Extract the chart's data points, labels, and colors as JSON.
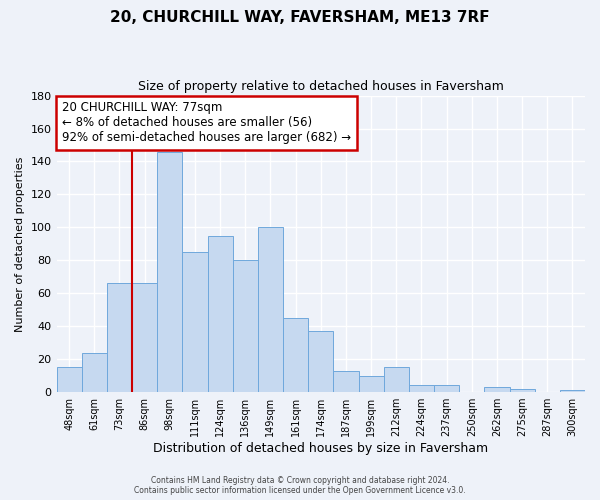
{
  "title": "20, CHURCHILL WAY, FAVERSHAM, ME13 7RF",
  "subtitle": "Size of property relative to detached houses in Faversham",
  "xlabel": "Distribution of detached houses by size in Faversham",
  "ylabel": "Number of detached properties",
  "bar_labels": [
    "48sqm",
    "61sqm",
    "73sqm",
    "86sqm",
    "98sqm",
    "111sqm",
    "124sqm",
    "136sqm",
    "149sqm",
    "161sqm",
    "174sqm",
    "187sqm",
    "199sqm",
    "212sqm",
    "224sqm",
    "237sqm",
    "250sqm",
    "262sqm",
    "275sqm",
    "287sqm",
    "300sqm"
  ],
  "bar_values": [
    15,
    24,
    66,
    66,
    146,
    85,
    95,
    80,
    100,
    45,
    37,
    13,
    10,
    15,
    4,
    4,
    0,
    3,
    2,
    0,
    1
  ],
  "bar_color": "#c6d9f0",
  "bar_edge_color": "#6fa8dc",
  "vline_x": 2.5,
  "vline_color": "#cc0000",
  "annotation_title": "20 CHURCHILL WAY: 77sqm",
  "annotation_line1": "← 8% of detached houses are smaller (56)",
  "annotation_line2": "92% of semi-detached houses are larger (682) →",
  "annotation_box_color": "#ffffff",
  "annotation_box_edge": "#cc0000",
  "ylim": [
    0,
    180
  ],
  "yticks": [
    0,
    20,
    40,
    60,
    80,
    100,
    120,
    140,
    160,
    180
  ],
  "footer_line1": "Contains HM Land Registry data © Crown copyright and database right 2024.",
  "footer_line2": "Contains public sector information licensed under the Open Government Licence v3.0.",
  "bg_color": "#eef2f9",
  "grid_color": "#ffffff",
  "title_fontsize": 11,
  "subtitle_fontsize": 9
}
